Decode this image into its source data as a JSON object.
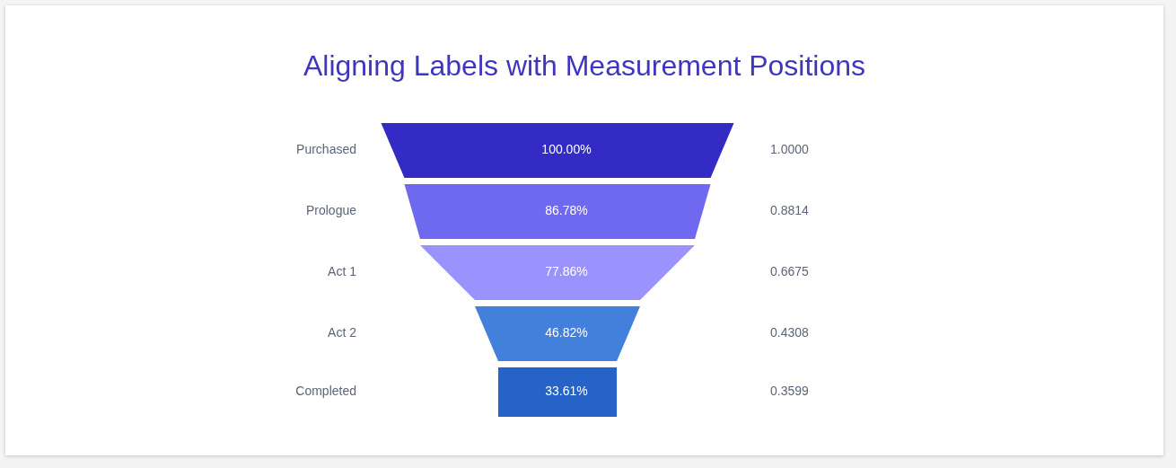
{
  "chart_data": {
    "type": "other",
    "title": "Aligning Labels with Measurement Positions",
    "categories": [
      "Purchased",
      "Prologue",
      "Act 1",
      "Act 2",
      "Completed"
    ],
    "series": [
      {
        "values": [
          100.0,
          86.78,
          77.86,
          46.82,
          33.61
        ],
        "value_labels": [
          "100.00%",
          "86.78%",
          "77.86%",
          "46.82%",
          "33.61%"
        ],
        "colors": [
          "#332bc4",
          "#6f69ef",
          "#9a93fd",
          "#4380dc",
          "#2563c8"
        ]
      },
      {
        "values": [
          1.0,
          0.8814,
          0.6675,
          0.4308,
          0.3599
        ],
        "value_labels": [
          "1.0000",
          "0.8814",
          "0.6675",
          "0.4308",
          "0.3599"
        ],
        "color": "#5b6478"
      }
    ]
  }
}
